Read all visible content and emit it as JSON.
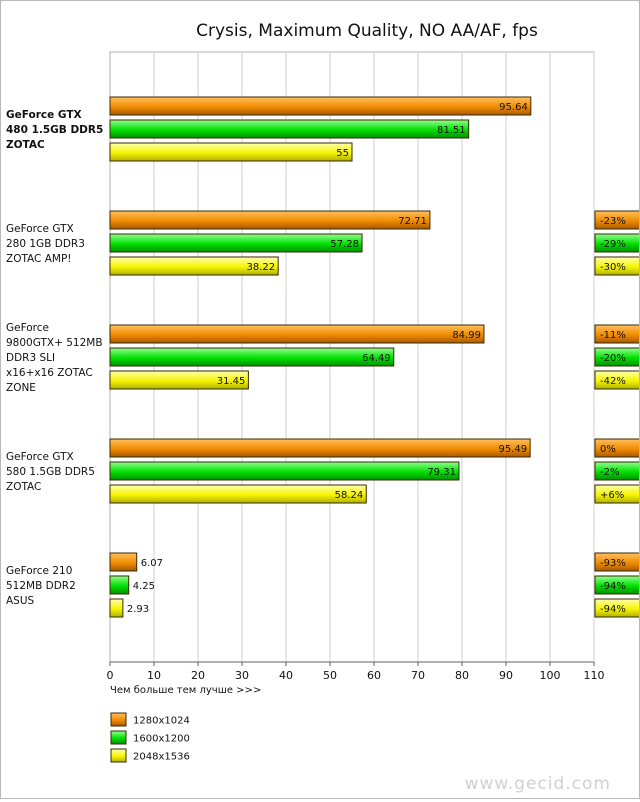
{
  "chart_data": {
    "type": "bar",
    "orientation": "horizontal",
    "title": "Crysis, Maximum Quality, NO AA/AF, fps",
    "xlabel": "Чем больше тем лучше >>>",
    "xlim": [
      0,
      110
    ],
    "xticks": [
      0,
      10,
      20,
      30,
      40,
      50,
      60,
      70,
      80,
      90,
      100,
      110
    ],
    "grid": true,
    "legend_position": "bottom-left",
    "watermark": "www.gecid.com",
    "series": [
      {
        "name": "1280x1024",
        "color": "#f08c00"
      },
      {
        "name": "1600x1200",
        "color": "#00e000"
      },
      {
        "name": "2048x1536",
        "color": "#f5f500"
      }
    ],
    "categories": [
      {
        "label_lines": [
          "GeForce GTX",
          "480 1.5GB DDR5",
          "ZOTAC"
        ],
        "bold": true,
        "values": [
          95.64,
          81.51,
          55
        ],
        "value_labels": [
          "95.64",
          "81.51",
          "55"
        ],
        "diffs": [
          "",
          "",
          ""
        ]
      },
      {
        "label_lines": [
          "GeForce GTX",
          "280 1GB DDR3",
          "ZOTAC AMP!"
        ],
        "bold": false,
        "values": [
          72.71,
          57.28,
          38.22
        ],
        "value_labels": [
          "72.71",
          "57.28",
          "38.22"
        ],
        "diffs": [
          "-23%",
          "-29%",
          "-30%"
        ]
      },
      {
        "label_lines": [
          "GeForce",
          "9800GTX+ 512MB",
          "DDR3 SLI",
          "x16+x16 ZOTAC",
          "ZONE"
        ],
        "bold": false,
        "values": [
          84.99,
          64.49,
          31.45
        ],
        "value_labels": [
          "84.99",
          "64.49",
          "31.45"
        ],
        "diffs": [
          "-11%",
          "-20%",
          "-42%"
        ]
      },
      {
        "label_lines": [
          "GeForce GTX",
          "580 1.5GB DDR5",
          "ZOTAC"
        ],
        "bold": false,
        "values": [
          95.49,
          79.31,
          58.24
        ],
        "value_labels": [
          "95.49",
          "79.31",
          "58.24"
        ],
        "diffs": [
          "0%",
          "-2%",
          "+6%"
        ]
      },
      {
        "label_lines": [
          "GeForce 210",
          "512MB DDR2",
          "ASUS"
        ],
        "bold": false,
        "values": [
          6.07,
          4.25,
          2.93
        ],
        "value_labels": [
          "6.07",
          "4.25",
          "2.93"
        ],
        "diffs": [
          "-93%",
          "-94%",
          "-94%"
        ]
      }
    ]
  }
}
